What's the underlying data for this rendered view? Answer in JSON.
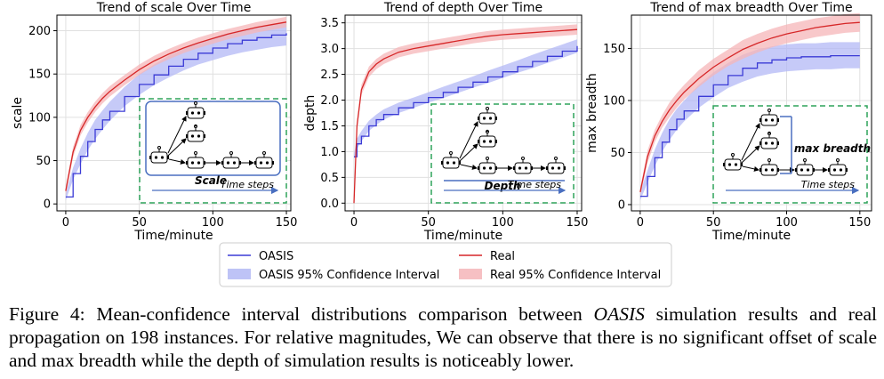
{
  "chart_data": [
    {
      "type": "line",
      "title": "Trend of scale Over Time",
      "xlabel": "Time/minute",
      "ylabel": "scale",
      "xlim": [
        -6,
        153
      ],
      "ylim": [
        -8,
        218
      ],
      "xticks": [
        0,
        50,
        100,
        150
      ],
      "yticks": [
        0,
        50,
        100,
        150,
        200
      ],
      "grid": true,
      "x": [
        0,
        5,
        10,
        15,
        20,
        25,
        30,
        40,
        50,
        60,
        70,
        80,
        90,
        100,
        110,
        120,
        130,
        140,
        150
      ],
      "series": [
        {
          "name": "OASIS",
          "values": [
            8,
            35,
            55,
            72,
            86,
            97,
            107,
            124,
            138,
            149,
            159,
            167,
            174,
            180,
            185,
            189,
            192,
            195,
            197
          ],
          "ci_low": [
            4,
            28,
            46,
            62,
            75,
            86,
            96,
            113,
            126,
            137,
            146,
            154,
            161,
            166,
            171,
            175,
            178,
            181,
            183
          ],
          "ci_high": [
            12,
            42,
            64,
            82,
            97,
            108,
            118,
            135,
            150,
            161,
            171,
            179,
            186,
            192,
            197,
            201,
            204,
            207,
            209
          ]
        },
        {
          "name": "Real",
          "values": [
            15,
            60,
            85,
            100,
            112,
            122,
            130,
            143,
            155,
            165,
            173,
            180,
            186,
            191,
            196,
            200,
            204,
            207,
            210
          ],
          "ci_low": [
            10,
            54,
            79,
            94,
            106,
            116,
            124,
            137,
            149,
            159,
            167,
            174,
            180,
            185,
            190,
            194,
            198,
            201,
            204
          ],
          "ci_high": [
            20,
            66,
            91,
            106,
            118,
            128,
            136,
            149,
            161,
            171,
            179,
            186,
            192,
            197,
            202,
            206,
            210,
            213,
            216
          ]
        }
      ],
      "inset": {
        "label": "Scale",
        "time_label": "Time steps"
      }
    },
    {
      "type": "line",
      "title": "Trend of depth Over Time",
      "xlabel": "Time/minute",
      "ylabel": "depth",
      "xlim": [
        -6,
        153
      ],
      "ylim": [
        -0.15,
        3.65
      ],
      "xticks": [
        0,
        50,
        100,
        150
      ],
      "yticks": [
        0.0,
        0.5,
        1.0,
        1.5,
        2.0,
        2.5,
        3.0,
        3.5
      ],
      "yticklabels": [
        "0.0",
        "0.5",
        "1.0",
        "1.5",
        "2.0",
        "2.5",
        "3.0",
        "3.5"
      ],
      "grid": true,
      "x": [
        0,
        2,
        5,
        10,
        15,
        20,
        30,
        40,
        50,
        60,
        70,
        80,
        90,
        100,
        110,
        120,
        130,
        140,
        150
      ],
      "series": [
        {
          "name": "OASIS",
          "values": [
            0.9,
            1.15,
            1.3,
            1.5,
            1.62,
            1.72,
            1.85,
            1.95,
            2.05,
            2.15,
            2.25,
            2.35,
            2.45,
            2.55,
            2.65,
            2.75,
            2.85,
            2.95,
            3.05
          ],
          "ci_low": [
            0.85,
            1.05,
            1.2,
            1.4,
            1.52,
            1.62,
            1.75,
            1.85,
            1.95,
            2.04,
            2.14,
            2.24,
            2.33,
            2.43,
            2.53,
            2.62,
            2.72,
            2.82,
            2.92
          ],
          "ci_high": [
            0.95,
            1.25,
            1.4,
            1.6,
            1.72,
            1.82,
            1.95,
            2.05,
            2.15,
            2.26,
            2.36,
            2.46,
            2.57,
            2.67,
            2.77,
            2.88,
            2.98,
            3.08,
            3.18
          ]
        },
        {
          "name": "Real",
          "values": [
            0.0,
            1.5,
            2.2,
            2.55,
            2.7,
            2.8,
            2.93,
            3.0,
            3.05,
            3.1,
            3.15,
            3.2,
            3.24,
            3.27,
            3.29,
            3.31,
            3.33,
            3.35,
            3.37
          ],
          "ci_low": [
            0.0,
            1.4,
            2.1,
            2.45,
            2.6,
            2.7,
            2.83,
            2.9,
            2.95,
            3.0,
            3.05,
            3.1,
            3.14,
            3.17,
            3.19,
            3.21,
            3.23,
            3.25,
            3.27
          ],
          "ci_high": [
            0.0,
            1.6,
            2.3,
            2.65,
            2.8,
            2.9,
            3.03,
            3.1,
            3.15,
            3.2,
            3.25,
            3.3,
            3.34,
            3.37,
            3.39,
            3.41,
            3.43,
            3.45,
            3.47
          ]
        }
      ],
      "inset": {
        "label": "Depth",
        "time_label": "Time steps"
      }
    },
    {
      "type": "line",
      "title": "Trend of max breadth Over Time",
      "xlabel": "Time/minute",
      "ylabel": "max breadth",
      "xlim": [
        -6,
        158
      ],
      "ylim": [
        -6,
        182
      ],
      "xticks": [
        0,
        50,
        100,
        150
      ],
      "yticks": [
        0,
        50,
        100,
        150
      ],
      "grid": true,
      "x": [
        0,
        5,
        10,
        15,
        20,
        25,
        30,
        40,
        50,
        60,
        70,
        80,
        90,
        100,
        110,
        120,
        130,
        140,
        150
      ],
      "series": [
        {
          "name": "OASIS",
          "values": [
            8,
            27,
            45,
            60,
            72,
            82,
            90,
            104,
            115,
            124,
            131,
            136,
            139,
            141,
            142,
            142,
            143,
            143,
            143
          ],
          "ci_low": [
            4,
            21,
            37,
            51,
            62,
            72,
            80,
            93,
            103,
            112,
            118,
            123,
            126,
            128,
            129,
            130,
            130,
            131,
            131
          ],
          "ci_high": [
            12,
            33,
            53,
            69,
            82,
            92,
            100,
            115,
            127,
            136,
            144,
            149,
            152,
            154,
            155,
            155,
            156,
            156,
            156
          ]
        },
        {
          "name": "Real",
          "values": [
            12,
            46,
            66,
            80,
            91,
            100,
            108,
            121,
            132,
            141,
            149,
            155,
            160,
            164,
            167,
            170,
            172,
            174,
            175
          ],
          "ci_low": [
            8,
            40,
            60,
            74,
            84,
            93,
            101,
            113,
            124,
            133,
            140,
            146,
            151,
            155,
            158,
            161,
            163,
            165,
            166
          ],
          "ci_high": [
            16,
            52,
            72,
            86,
            98,
            107,
            115,
            129,
            140,
            149,
            158,
            164,
            169,
            173,
            176,
            179,
            181,
            183,
            184
          ]
        }
      ],
      "inset": {
        "label": "max breadth",
        "time_label": "Time steps"
      }
    }
  ],
  "legend": {
    "oasis_line": "OASIS",
    "oasis_ci": "OASIS 95% Confidence Interval",
    "real_line": "Real",
    "real_ci": "Real 95% Confidence Interval"
  },
  "colors": {
    "oasis": "#3b3bd6",
    "oasis_fill": "#b3b8f5",
    "real": "#d62728",
    "real_fill": "#f5b5b8",
    "inset_border": "#2ea35a"
  },
  "caption": {
    "prefix": "Figure 4: Mean-confidence interval distributions comparison between ",
    "emph": "OASIS",
    "suffix": " simulation results and real propagation on 198 instances. For relative magnitudes, We can observe that there is no significant offset of scale and max breadth while the depth of simulation results is noticeably lower."
  }
}
